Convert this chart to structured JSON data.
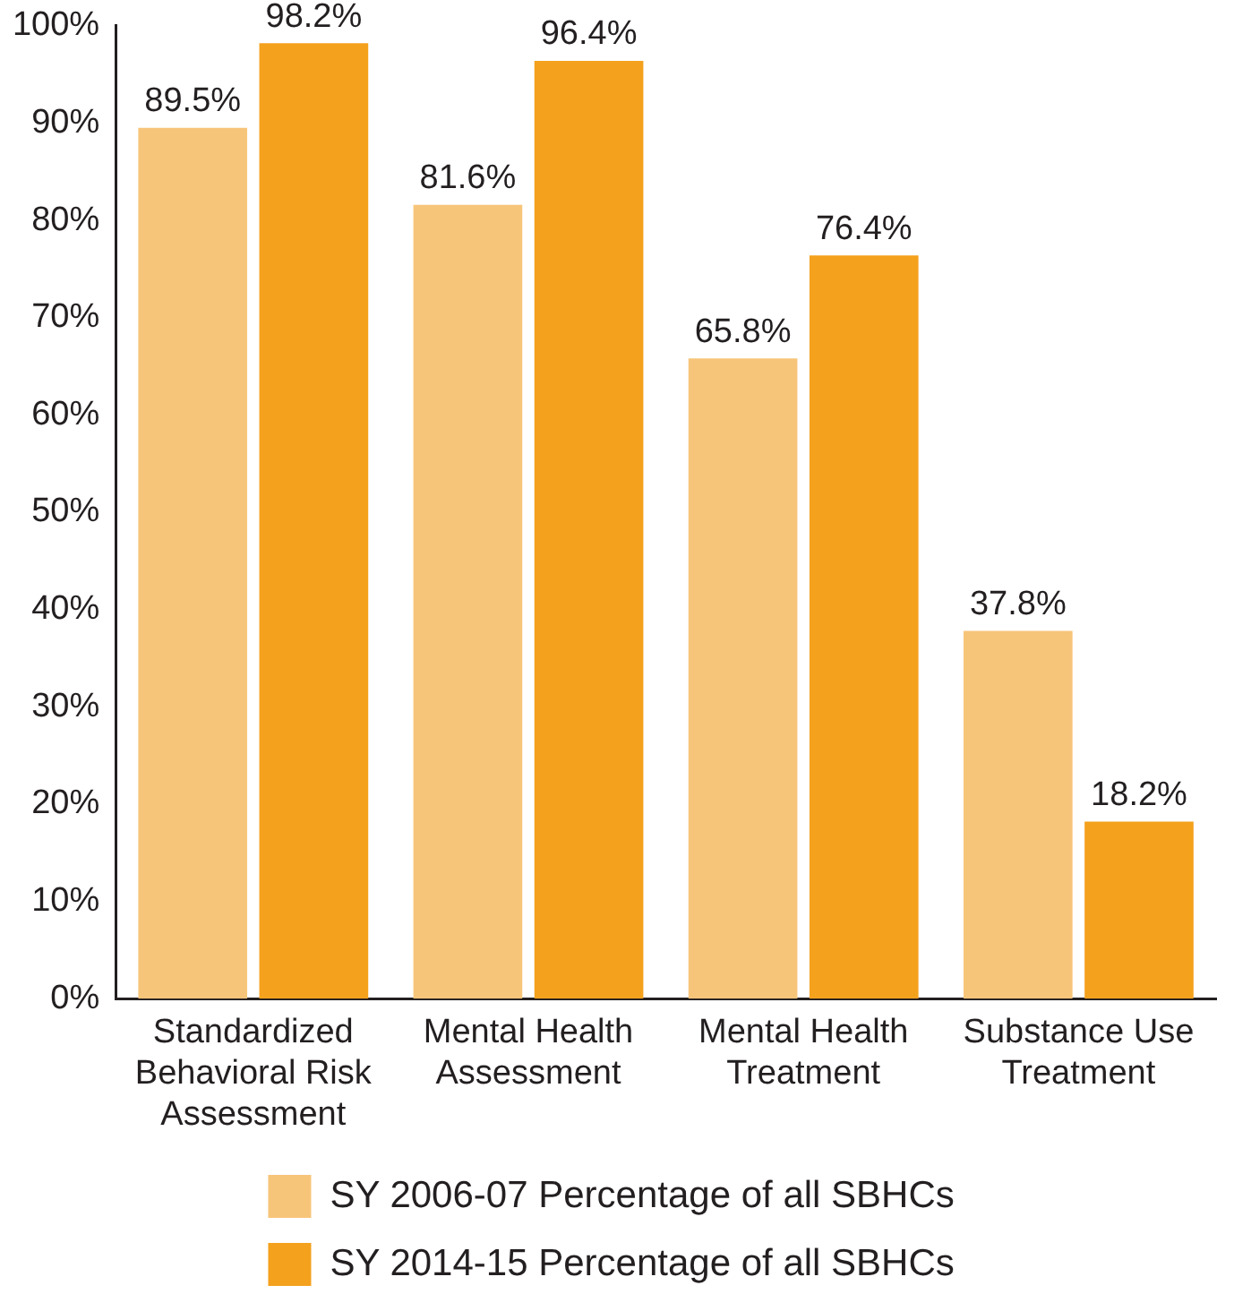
{
  "chart_data": {
    "type": "bar",
    "categories": [
      "Standardized Behavioral Risk Assessment",
      "Mental Health Assessment",
      "Mental Health Treatment",
      "Substance Use Treatment"
    ],
    "series": [
      {
        "name": "SY 2006-07 Percentage of all SBHCs",
        "color": "#f7c57a",
        "values": [
          89.5,
          81.6,
          65.8,
          37.8
        ],
        "value_labels": [
          "89.5%",
          "81.6%",
          "65.8%",
          "37.8%"
        ]
      },
      {
        "name": "SY 2014-15 Percentage of all SBHCs",
        "color": "#f4a11d",
        "values": [
          98.2,
          96.4,
          76.4,
          18.2
        ],
        "value_labels": [
          "98.2%",
          "96.4%",
          "76.4%",
          "18.2%"
        ]
      }
    ],
    "ylim": [
      0,
      100
    ],
    "yticks": [
      {
        "value": 0,
        "label": "0%"
      },
      {
        "value": 10,
        "label": "10%"
      },
      {
        "value": 20,
        "label": "20%"
      },
      {
        "value": 30,
        "label": "30%"
      },
      {
        "value": 40,
        "label": "40%"
      },
      {
        "value": 50,
        "label": "50%"
      },
      {
        "value": 60,
        "label": "60%"
      },
      {
        "value": 70,
        "label": "70%"
      },
      {
        "value": 80,
        "label": "80%"
      },
      {
        "value": 90,
        "label": "90%"
      },
      {
        "value": 100,
        "label": "100%"
      }
    ],
    "grid": false,
    "legend": "bottom"
  }
}
